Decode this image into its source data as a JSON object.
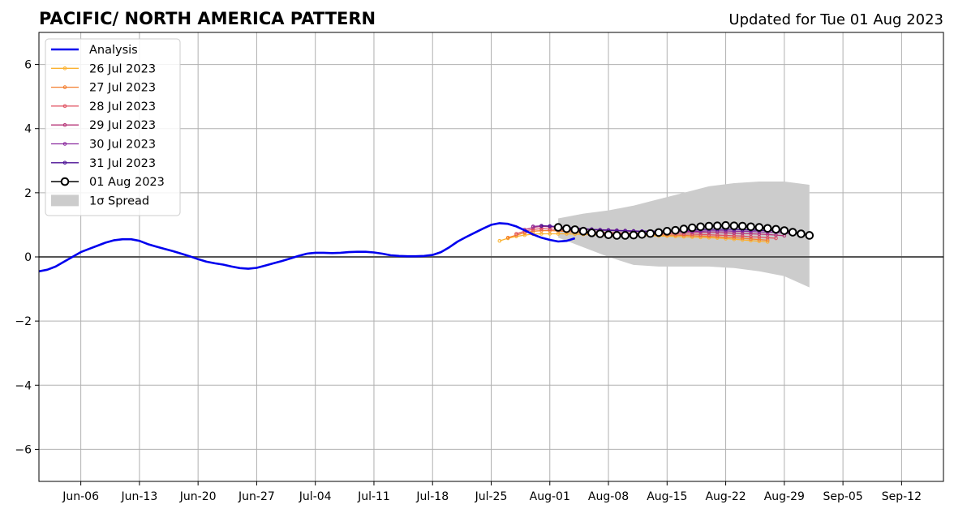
{
  "chart_data": {
    "type": "line",
    "title": "PACIFIC/ NORTH AMERICA PATTERN",
    "subtitle": "Updated for Tue 01 Aug 2023",
    "ylim": [
      -7,
      7
    ],
    "yticks": [
      -6,
      -4,
      -2,
      0,
      2,
      4,
      6
    ],
    "ytick_labels": [
      "−6",
      "−4",
      "−2",
      "0",
      "2",
      "4",
      "6"
    ],
    "xlim": [
      "2023-06-01",
      "2023-09-17"
    ],
    "xticks": [
      "2023-06-06",
      "2023-06-13",
      "2023-06-20",
      "2023-06-27",
      "2023-07-04",
      "2023-07-11",
      "2023-07-18",
      "2023-07-25",
      "2023-08-01",
      "2023-08-08",
      "2023-08-15",
      "2023-08-22",
      "2023-08-29",
      "2023-09-05",
      "2023-09-12"
    ],
    "xtick_labels": [
      "Jun-06",
      "Jun-13",
      "Jun-20",
      "Jun-27",
      "Jul-04",
      "Jul-11",
      "Jul-18",
      "Jul-25",
      "Aug-01",
      "Aug-08",
      "Aug-15",
      "Aug-22",
      "Aug-29",
      "Sep-05",
      "Sep-12"
    ],
    "grid": true,
    "legend_position": "top-left",
    "analysis": {
      "name": "Analysis",
      "color": "#0000ee",
      "start": "2023-06-01",
      "values": [
        -0.45,
        -0.4,
        -0.3,
        -0.15,
        0.0,
        0.15,
        0.25,
        0.35,
        0.45,
        0.52,
        0.55,
        0.55,
        0.5,
        0.4,
        0.32,
        0.25,
        0.18,
        0.1,
        0.02,
        -0.07,
        -0.15,
        -0.2,
        -0.24,
        -0.3,
        -0.35,
        -0.37,
        -0.34,
        -0.27,
        -0.2,
        -0.13,
        -0.05,
        0.03,
        0.1,
        0.13,
        0.13,
        0.12,
        0.13,
        0.15,
        0.16,
        0.16,
        0.14,
        0.1,
        0.05,
        0.03,
        0.02,
        0.02,
        0.03,
        0.06,
        0.15,
        0.3,
        0.48,
        0.62,
        0.75,
        0.88,
        1.0,
        1.05,
        1.03,
        0.95,
        0.83,
        0.7,
        0.6,
        0.53,
        0.48,
        0.5,
        0.58
      ]
    },
    "forecasts": [
      {
        "name": "26 Jul 2023",
        "color": "#fbb230",
        "start": "2023-07-26",
        "values": [
          0.5,
          0.58,
          0.64,
          0.68,
          0.71,
          0.72,
          0.72,
          0.72,
          0.72,
          0.71,
          0.7,
          0.69,
          0.68,
          0.67,
          0.67,
          0.66,
          0.66,
          0.66,
          0.66,
          0.65,
          0.65,
          0.64,
          0.63,
          0.62,
          0.61,
          0.6,
          0.59,
          0.57,
          0.55,
          0.53,
          0.51,
          0.49,
          0.47
        ]
      },
      {
        "name": "27 Jul 2023",
        "color": "#f37d2d",
        "start": "2023-07-27",
        "values": [
          0.6,
          0.68,
          0.75,
          0.8,
          0.82,
          0.82,
          0.81,
          0.79,
          0.77,
          0.75,
          0.74,
          0.73,
          0.72,
          0.71,
          0.7,
          0.7,
          0.69,
          0.69,
          0.69,
          0.68,
          0.68,
          0.67,
          0.66,
          0.65,
          0.64,
          0.63,
          0.61,
          0.6,
          0.58,
          0.56,
          0.54,
          0.52
        ]
      },
      {
        "name": "28 Jul 2023",
        "color": "#e05060",
        "start": "2023-07-28",
        "values": [
          0.72,
          0.8,
          0.86,
          0.88,
          0.87,
          0.85,
          0.83,
          0.81,
          0.79,
          0.78,
          0.77,
          0.76,
          0.75,
          0.74,
          0.74,
          0.73,
          0.73,
          0.72,
          0.72,
          0.72,
          0.71,
          0.71,
          0.7,
          0.69,
          0.68,
          0.67,
          0.66,
          0.65,
          0.63,
          0.62,
          0.6,
          0.58
        ]
      },
      {
        "name": "29 Jul 2023",
        "color": "#b73779",
        "start": "2023-07-29",
        "values": [
          0.85,
          0.92,
          0.95,
          0.94,
          0.92,
          0.9,
          0.88,
          0.86,
          0.85,
          0.84,
          0.83,
          0.82,
          0.81,
          0.8,
          0.79,
          0.79,
          0.78,
          0.78,
          0.78,
          0.77,
          0.77,
          0.77,
          0.76,
          0.76,
          0.75,
          0.74,
          0.73,
          0.72,
          0.71,
          0.7,
          0.68,
          0.66
        ]
      },
      {
        "name": "30 Jul 2023",
        "color": "#8a2a9e",
        "start": "2023-07-30",
        "values": [
          0.95,
          0.97,
          0.96,
          0.94,
          0.92,
          0.9,
          0.88,
          0.86,
          0.85,
          0.84,
          0.83,
          0.82,
          0.81,
          0.8,
          0.8,
          0.79,
          0.79,
          0.79,
          0.79,
          0.8,
          0.8,
          0.81,
          0.81,
          0.81,
          0.8,
          0.8,
          0.79,
          0.78,
          0.77,
          0.76,
          0.74,
          0.72
        ]
      },
      {
        "name": "31 Jul 2023",
        "color": "#4b1194",
        "start": "2023-07-31",
        "values": [
          0.97,
          0.96,
          0.94,
          0.92,
          0.9,
          0.88,
          0.86,
          0.84,
          0.83,
          0.82,
          0.81,
          0.8,
          0.8,
          0.8,
          0.8,
          0.81,
          0.82,
          0.83,
          0.84,
          0.85,
          0.86,
          0.86,
          0.86,
          0.86,
          0.85,
          0.84,
          0.83,
          0.82,
          0.81,
          0.8,
          0.78
        ]
      }
    ],
    "current": {
      "name": "01 Aug 2023",
      "color": "#000000",
      "start": "2023-08-02",
      "values": [
        0.92,
        0.88,
        0.85,
        0.8,
        0.75,
        0.72,
        0.69,
        0.67,
        0.67,
        0.68,
        0.7,
        0.73,
        0.76,
        0.8,
        0.83,
        0.87,
        0.91,
        0.94,
        0.96,
        0.97,
        0.98,
        0.97,
        0.96,
        0.94,
        0.92,
        0.89,
        0.86,
        0.82,
        0.77,
        0.72,
        0.67
      ]
    },
    "spread": {
      "name": "1σ Spread",
      "color": "#cccccc",
      "x": [
        "2023-08-02",
        "2023-08-05",
        "2023-08-08",
        "2023-08-11",
        "2023-08-14",
        "2023-08-17",
        "2023-08-20",
        "2023-08-23",
        "2023-08-26",
        "2023-08-29",
        "2023-09-01"
      ],
      "upper": [
        1.2,
        1.35,
        1.45,
        1.6,
        1.8,
        2.0,
        2.2,
        2.3,
        2.35,
        2.35,
        2.25
      ],
      "lower": [
        0.6,
        0.3,
        0.0,
        -0.25,
        -0.3,
        -0.3,
        -0.3,
        -0.35,
        -0.45,
        -0.6,
        -0.95
      ]
    }
  }
}
